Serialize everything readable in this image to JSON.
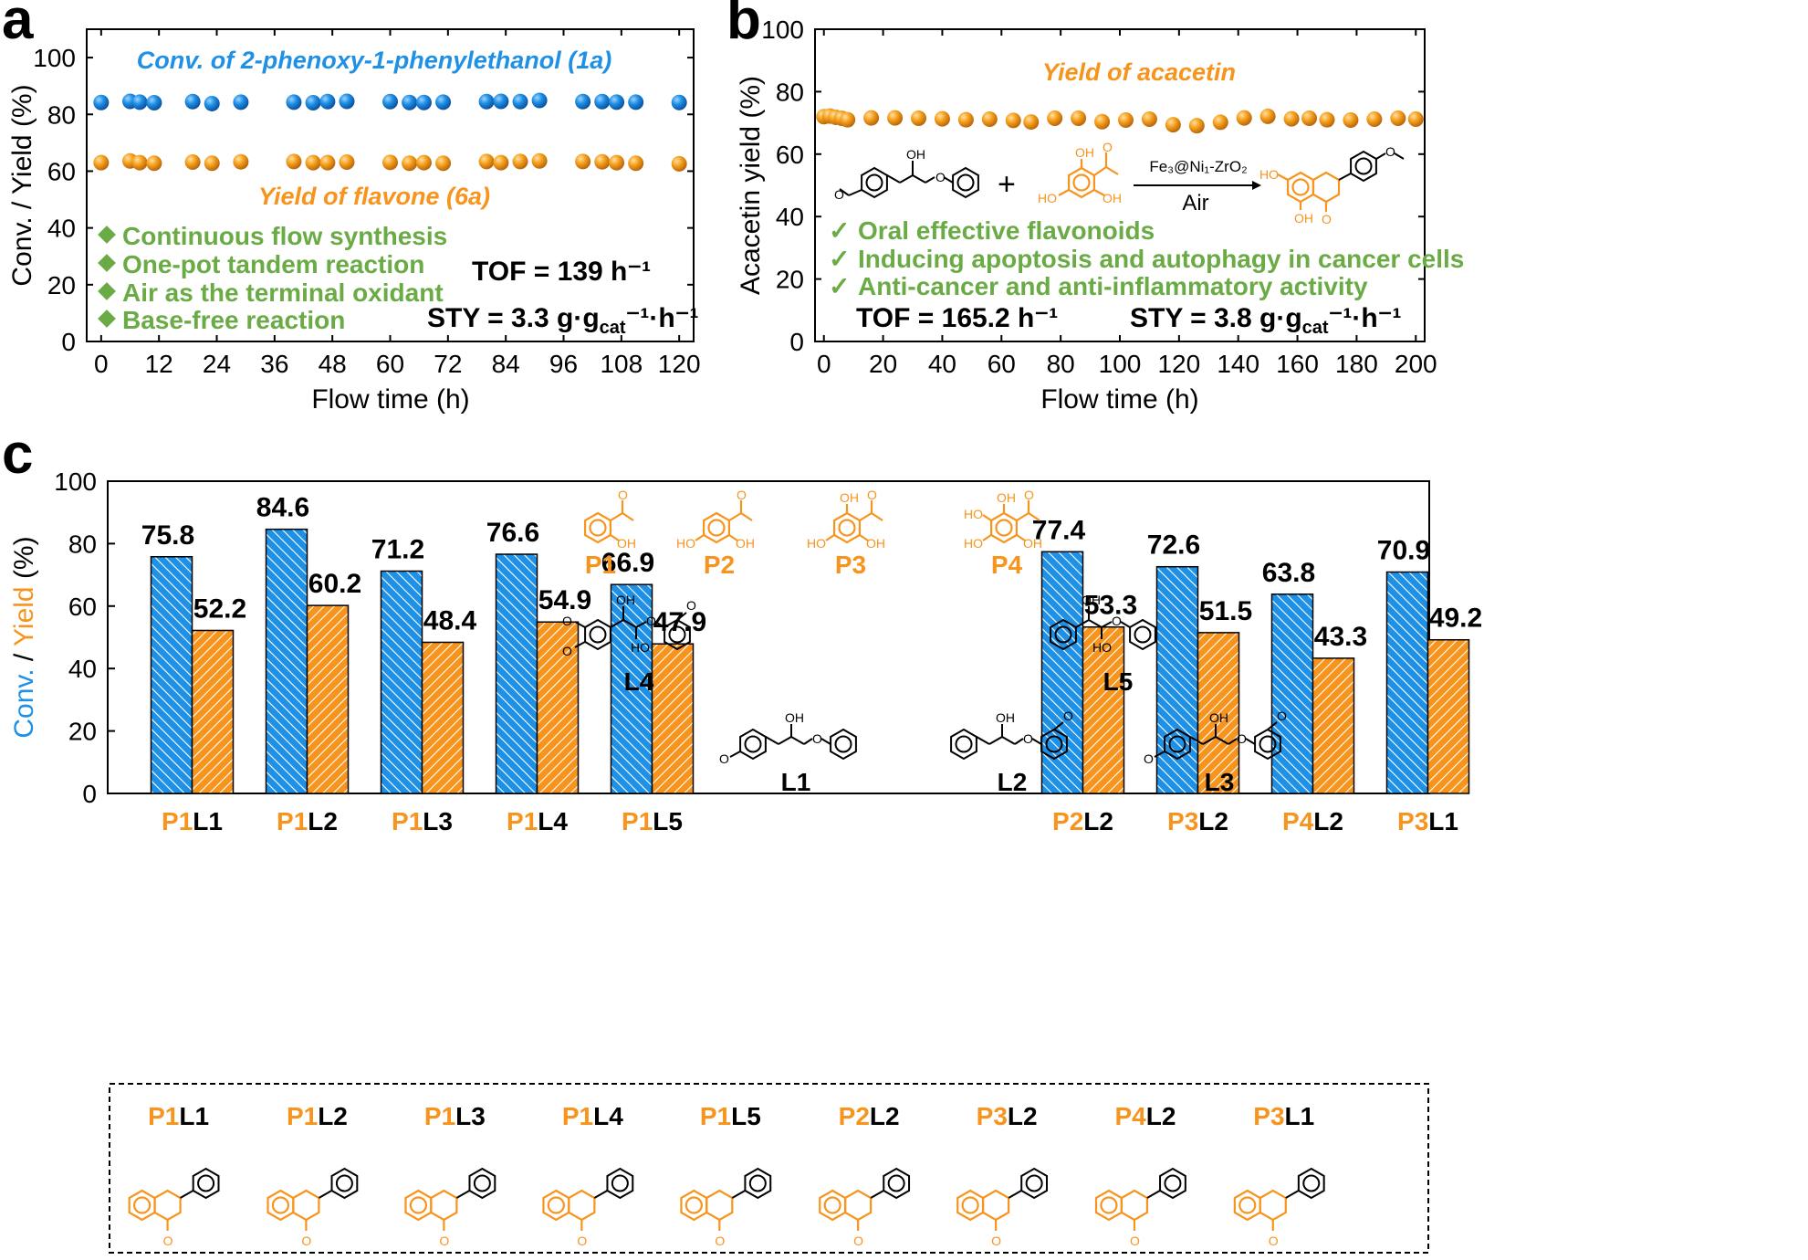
{
  "colors": {
    "blue": "#1e90e6",
    "orange": "#f7941d",
    "green": "#6aab45"
  },
  "panel_a": {
    "letter": "a",
    "title_conv": "Conv. of 2-phenoxy-1-phenylethanol (1a)",
    "title_yield": "Yield of flavone (6a)",
    "bullets": [
      "Continuous flow synthesis",
      "One-pot tandem reaction",
      "Air as the terminal oxidant",
      "Base-free reaction"
    ],
    "tof_text": "TOF = 139 h⁻¹",
    "sty_prefix": "STY = 3.3 g·g",
    "sty_sub": "cat",
    "sty_suffix": "⁻¹·h⁻¹"
  },
  "panel_b": {
    "letter": "b",
    "title": "Yield of acacetin",
    "reagent": "Fe₃@Ni₁-ZrO₂",
    "condition": "Air",
    "checks": [
      "Oral effective flavonoids",
      "Inducing apoptosis and autophagy in cancer cells",
      "Anti-cancer and anti-inflammatory activity"
    ],
    "check_mark": "✓",
    "plus": "+",
    "tof_text": "TOF = 165.2 h⁻¹",
    "sty_prefix": "STY = 3.8 g·g",
    "sty_sub": "cat",
    "sty_suffix": "⁻¹·h⁻¹"
  },
  "panel_c": {
    "letter": "c",
    "structure_labels": {
      "P1": "P1",
      "P2": "P2",
      "P3": "P3",
      "P4": "P4",
      "L1": "L1",
      "L2": "L2",
      "L3": "L3",
      "L4": "L4",
      "L5": "L5"
    },
    "chem_text": {
      "oh": "OH",
      "ho": "HO",
      "o": "O"
    }
  },
  "chart_data": [
    {
      "type": "scatter",
      "xlabel": "Flow time (h)",
      "ylabel": "Conv. / Yield (%)",
      "xlim": [
        -3,
        123
      ],
      "ylim": [
        0,
        110
      ],
      "xticks": [
        0,
        12,
        24,
        36,
        48,
        60,
        72,
        84,
        96,
        108,
        120
      ],
      "yticks": [
        0,
        20,
        40,
        60,
        80,
        100
      ],
      "series": [
        {
          "name": "Conv. of 2-phenoxy-1-phenylethanol (1a)",
          "color": "#1e90e6",
          "x": [
            0,
            6,
            8,
            11,
            19,
            23,
            29,
            40,
            44,
            47,
            51,
            60,
            64,
            67,
            71,
            80,
            83,
            87,
            91,
            100,
            104,
            107,
            111,
            120
          ],
          "y": [
            84.2,
            84.6,
            84.3,
            84.1,
            84.5,
            83.8,
            84.3,
            84.3,
            84.1,
            84.5,
            84.6,
            84.5,
            84.2,
            84.2,
            84.3,
            84.5,
            84.6,
            84.5,
            84.9,
            84.5,
            84.5,
            84.3,
            84.3,
            84.2
          ]
        },
        {
          "name": "Yield of flavone (6a)",
          "color": "#f7941d",
          "x": [
            0,
            6,
            8,
            11,
            19,
            23,
            29,
            40,
            44,
            47,
            51,
            60,
            64,
            67,
            71,
            80,
            83,
            87,
            91,
            100,
            104,
            107,
            111,
            120
          ],
          "y": [
            63.0,
            63.6,
            63.0,
            62.8,
            63.2,
            62.8,
            63.3,
            63.4,
            63.0,
            63.0,
            63.2,
            63.1,
            62.8,
            63.0,
            62.8,
            63.4,
            63.0,
            63.4,
            63.6,
            63.4,
            63.3,
            63.0,
            62.8,
            62.6
          ]
        }
      ]
    },
    {
      "type": "scatter",
      "xlabel": "Flow time (h)",
      "ylabel": "Acacetin yield (%)",
      "xlim": [
        -3,
        203
      ],
      "ylim": [
        0,
        100
      ],
      "xticks": [
        0,
        20,
        40,
        60,
        80,
        100,
        120,
        140,
        160,
        180,
        200
      ],
      "yticks": [
        0,
        20,
        40,
        60,
        80,
        100
      ],
      "series": [
        {
          "name": "Yield of acacetin",
          "color": "#f7941d",
          "x": [
            0,
            2,
            4,
            6,
            8,
            16,
            24,
            32,
            40,
            48,
            56,
            64,
            70,
            78,
            86,
            94,
            102,
            110,
            118,
            126,
            134,
            142,
            150,
            158,
            164,
            170,
            178,
            186,
            194,
            200
          ],
          "y": [
            72.0,
            72.2,
            71.8,
            71.5,
            71.0,
            71.6,
            71.6,
            71.5,
            71.3,
            71.0,
            71.2,
            70.8,
            70.3,
            71.5,
            71.5,
            70.4,
            70.9,
            71.2,
            69.4,
            69.1,
            70.2,
            71.6,
            72.1,
            71.3,
            71.5,
            71.0,
            70.9,
            71.2,
            71.5,
            71.2
          ]
        }
      ]
    },
    {
      "type": "bar",
      "ylabel_blue": "Conv.",
      "ylabel_sep": " / ",
      "ylabel_orange": "Yield",
      "ylabel_unit": " (%)",
      "ylim": [
        0,
        100
      ],
      "yticks": [
        0,
        20,
        40,
        60,
        80,
        100
      ],
      "categories": [
        {
          "p": "P1",
          "l": "L1"
        },
        {
          "p": "P1",
          "l": "L2"
        },
        {
          "p": "P1",
          "l": "L3"
        },
        {
          "p": "P1",
          "l": "L4"
        },
        {
          "p": "P1",
          "l": "L5"
        },
        {
          "p": "P2",
          "l": "L2"
        },
        {
          "p": "P3",
          "l": "L2"
        },
        {
          "p": "P4",
          "l": "L2"
        },
        {
          "p": "P3",
          "l": "L1"
        }
      ],
      "series": [
        {
          "name": "Conv.",
          "color": "#1e90e6",
          "values": [
            75.8,
            84.6,
            71.2,
            76.6,
            66.9,
            77.4,
            72.6,
            63.8,
            70.9
          ],
          "labels": [
            "75.8",
            "84.6",
            "71.2",
            "76.6",
            "66.9",
            "77.4",
            "72.6",
            "63.8",
            "70.9"
          ]
        },
        {
          "name": "Yield",
          "color": "#f7941d",
          "values": [
            52.2,
            60.2,
            48.4,
            54.9,
            47.9,
            53.3,
            51.5,
            43.3,
            49.2
          ],
          "labels": [
            "52.2",
            "60.2",
            "48.4",
            "54.9",
            "47.9",
            "53.3",
            "51.5",
            "43.3",
            "49.2"
          ]
        }
      ]
    }
  ]
}
